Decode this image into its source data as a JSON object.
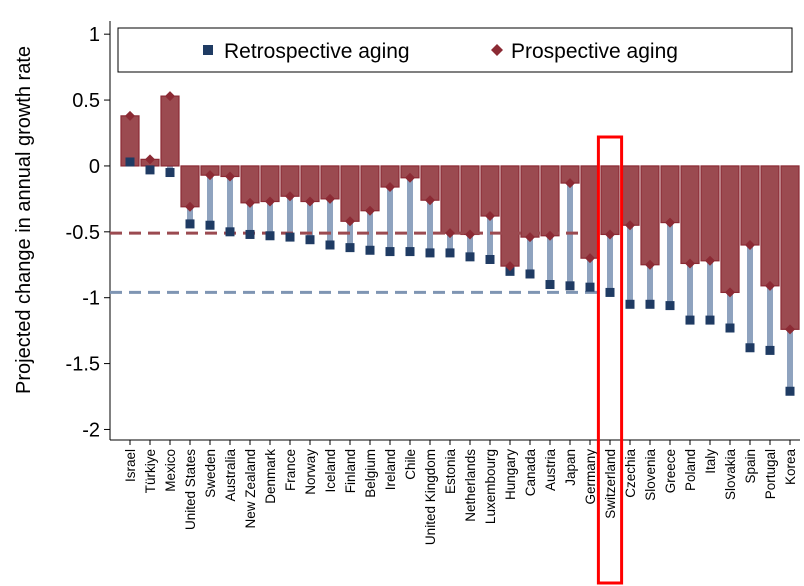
{
  "chart_data": {
    "type": "bar",
    "y_label": "Projected change in annual growth rate",
    "categories": [
      "Israel",
      "Türkiye",
      "Mexico",
      "United States",
      "Sweden",
      "Australia",
      "New Zealand",
      "Denmark",
      "France",
      "Norway",
      "Iceland",
      "Finland",
      "Belgium",
      "Ireland",
      "Chile",
      "United Kingdom",
      "Estonia",
      "Netherlands",
      "Luxembourg",
      "Hungary",
      "Canada",
      "Austria",
      "Japan",
      "Germany",
      "Switzerland",
      "Czechia",
      "Slovenia",
      "Greece",
      "Poland",
      "Italy",
      "Slovakia",
      "Spain",
      "Portugal",
      "Korea"
    ],
    "series": [
      {
        "name": "Retrospective aging",
        "color": "#1f3b63",
        "bar_color": "#8fa3bf",
        "values": [
          0.03,
          -0.03,
          -0.05,
          -0.44,
          -0.45,
          -0.5,
          -0.52,
          -0.53,
          -0.54,
          -0.56,
          -0.6,
          -0.62,
          -0.64,
          -0.65,
          -0.65,
          -0.66,
          -0.66,
          -0.69,
          -0.71,
          -0.8,
          -0.82,
          -0.9,
          -0.91,
          -0.92,
          -0.96,
          -1.05,
          -1.05,
          -1.06,
          -1.17,
          -1.17,
          -1.23,
          -1.38,
          -1.4,
          -1.71
        ]
      },
      {
        "name": "Prospective aging",
        "color": "#8b2a34",
        "bar_color": "#9b4a50",
        "values": [
          0.38,
          0.05,
          0.53,
          -0.31,
          -0.07,
          -0.08,
          -0.28,
          -0.27,
          -0.23,
          -0.27,
          -0.25,
          -0.42,
          -0.34,
          -0.16,
          -0.09,
          -0.26,
          -0.51,
          -0.52,
          -0.38,
          -0.76,
          -0.54,
          -0.53,
          -0.13,
          -0.7,
          -0.52,
          -0.45,
          -0.75,
          -0.43,
          -0.74,
          -0.72,
          -0.96,
          -0.6,
          -0.91,
          -1.24
        ]
      }
    ],
    "reference_lines": [
      {
        "value": -0.51,
        "color": "#9b4a50"
      },
      {
        "value": -0.96,
        "color": "#7f95b3"
      }
    ],
    "highlight": "Switzerland",
    "highlight_color": "#ff0000",
    "ylim": [
      -2.08,
      1.1
    ],
    "yticks": [
      -2,
      -1.5,
      -1,
      -0.5,
      0,
      0.5,
      1
    ]
  }
}
